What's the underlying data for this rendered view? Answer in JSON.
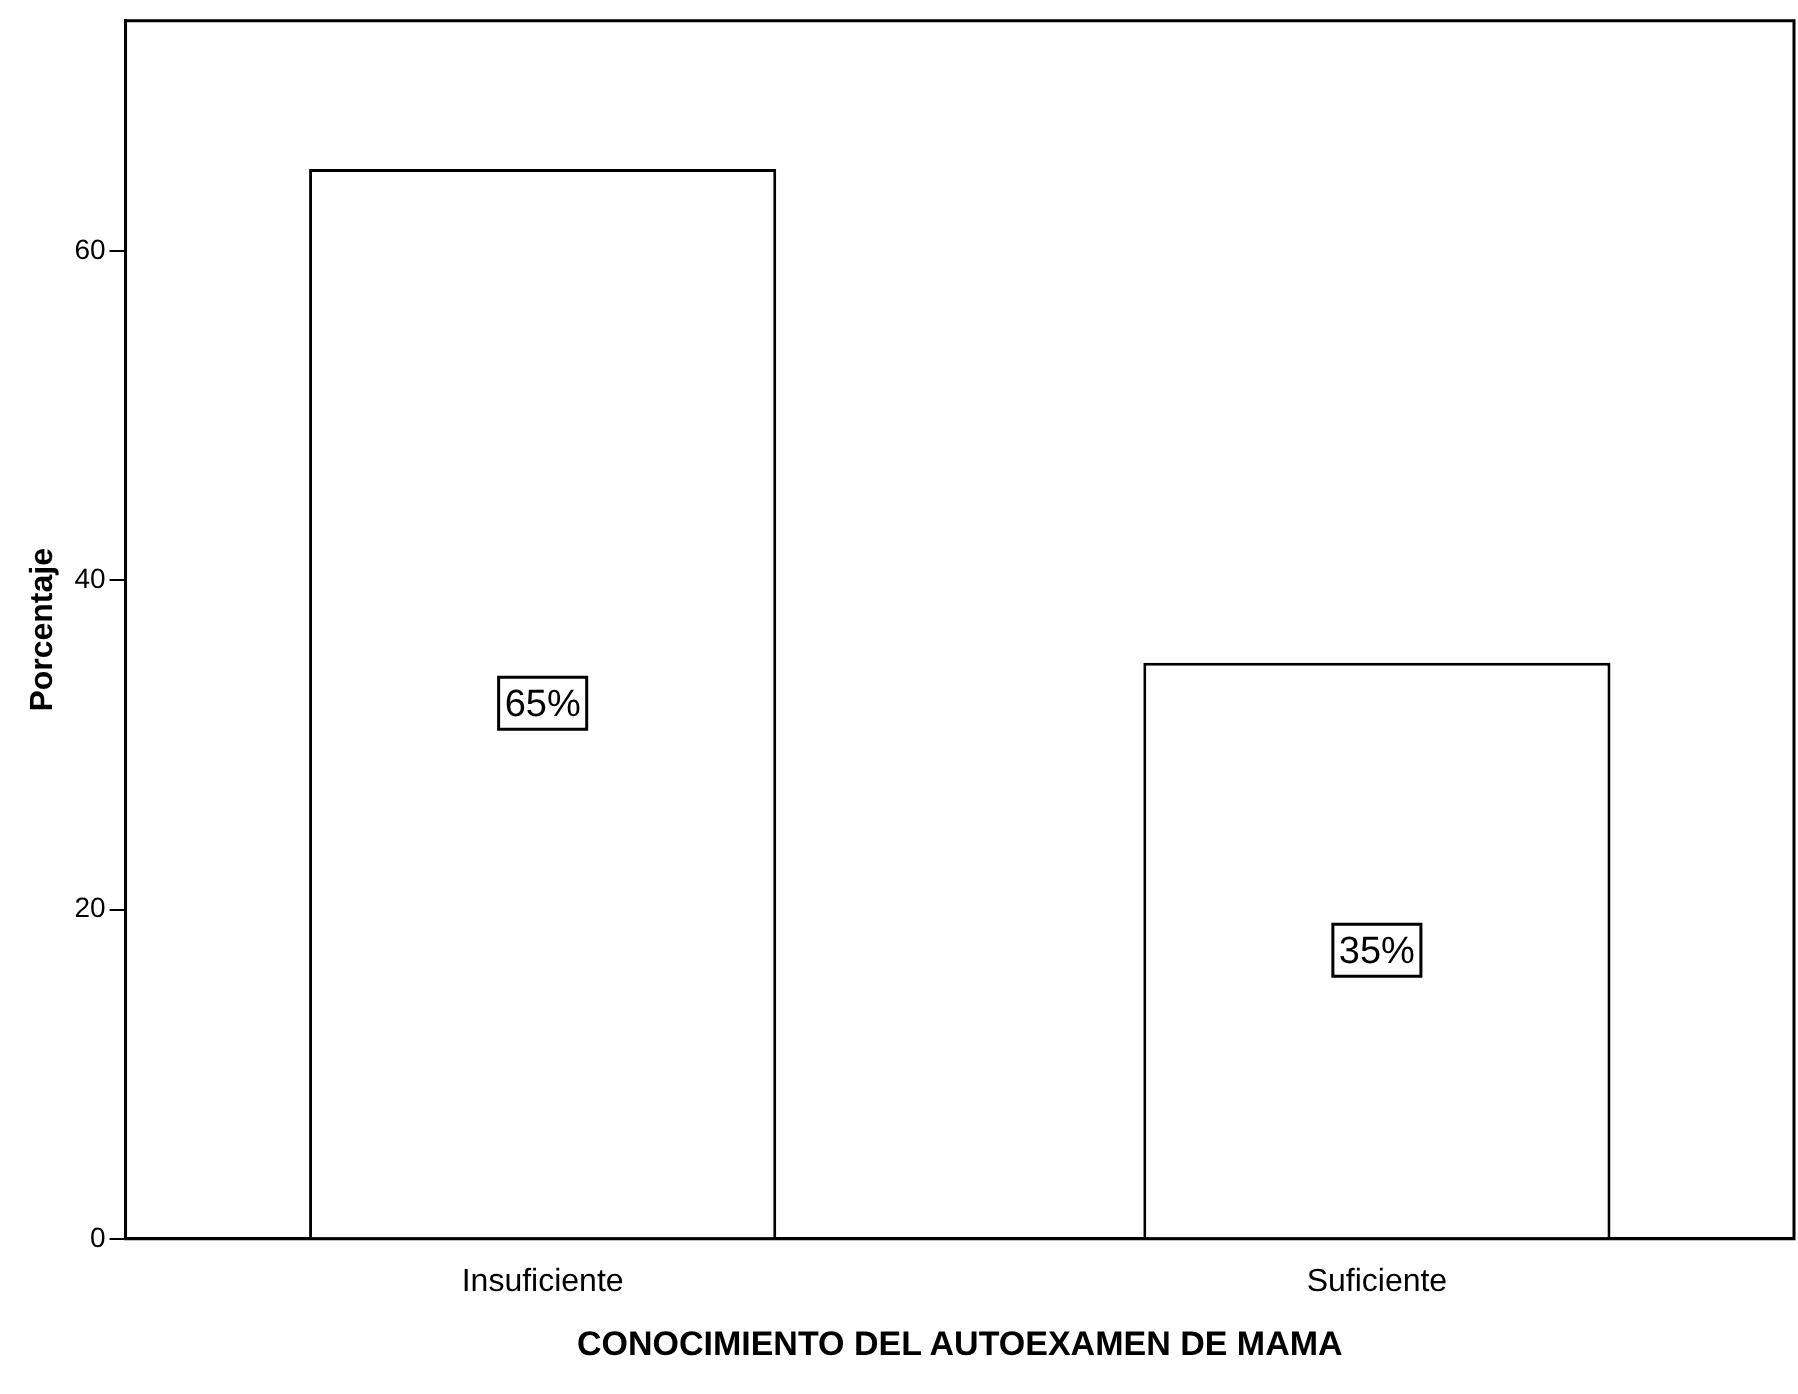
{
  "chart_data": {
    "type": "bar",
    "categories": [
      "Insuficiente",
      "Suficiente"
    ],
    "values": [
      65,
      35
    ],
    "value_labels": [
      "65%",
      "35%"
    ],
    "color": "#ffffff",
    "xlabel": "CONOCIMIENTO DEL AUTOEXAMEN DE MAMA",
    "ylabel": "Porcentaje",
    "ylim": [
      0,
      74
    ],
    "yticks": [
      0,
      20,
      40,
      60
    ],
    "grid": false,
    "legend": false
  }
}
